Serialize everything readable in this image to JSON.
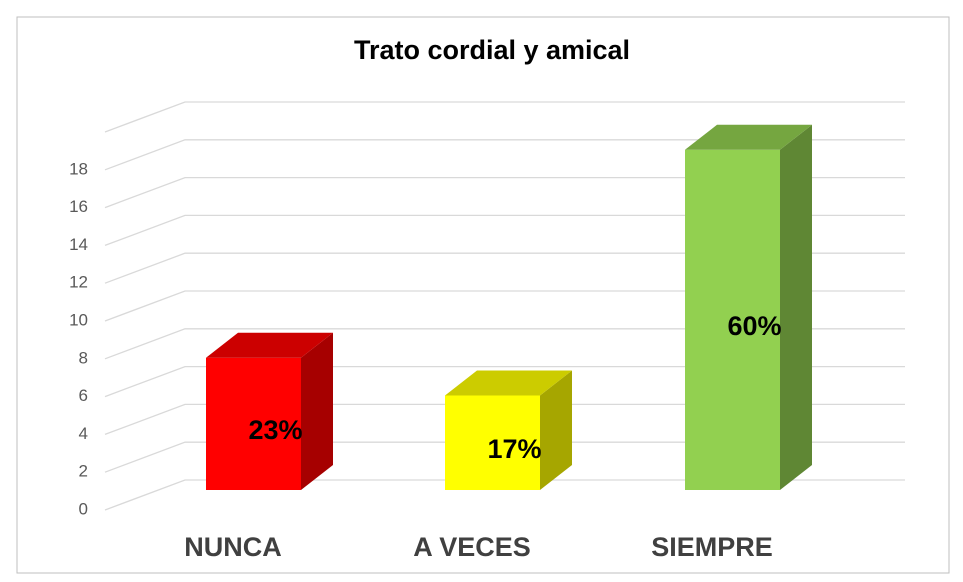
{
  "chart_data": {
    "type": "bar3d",
    "title": "Trato cordial y amical",
    "categories": [
      "NUNCA",
      "A VECES",
      "SIEMPRE"
    ],
    "values": [
      7,
      5,
      18
    ],
    "value_labels": [
      "23%",
      "17%",
      "60%"
    ],
    "colors": [
      "#ff0000",
      "#ffff00",
      "#92d050"
    ],
    "ylim": [
      0,
      20
    ],
    "yticks": [
      0,
      2,
      4,
      6,
      8,
      10,
      12,
      14,
      16,
      18
    ],
    "grid": true
  }
}
